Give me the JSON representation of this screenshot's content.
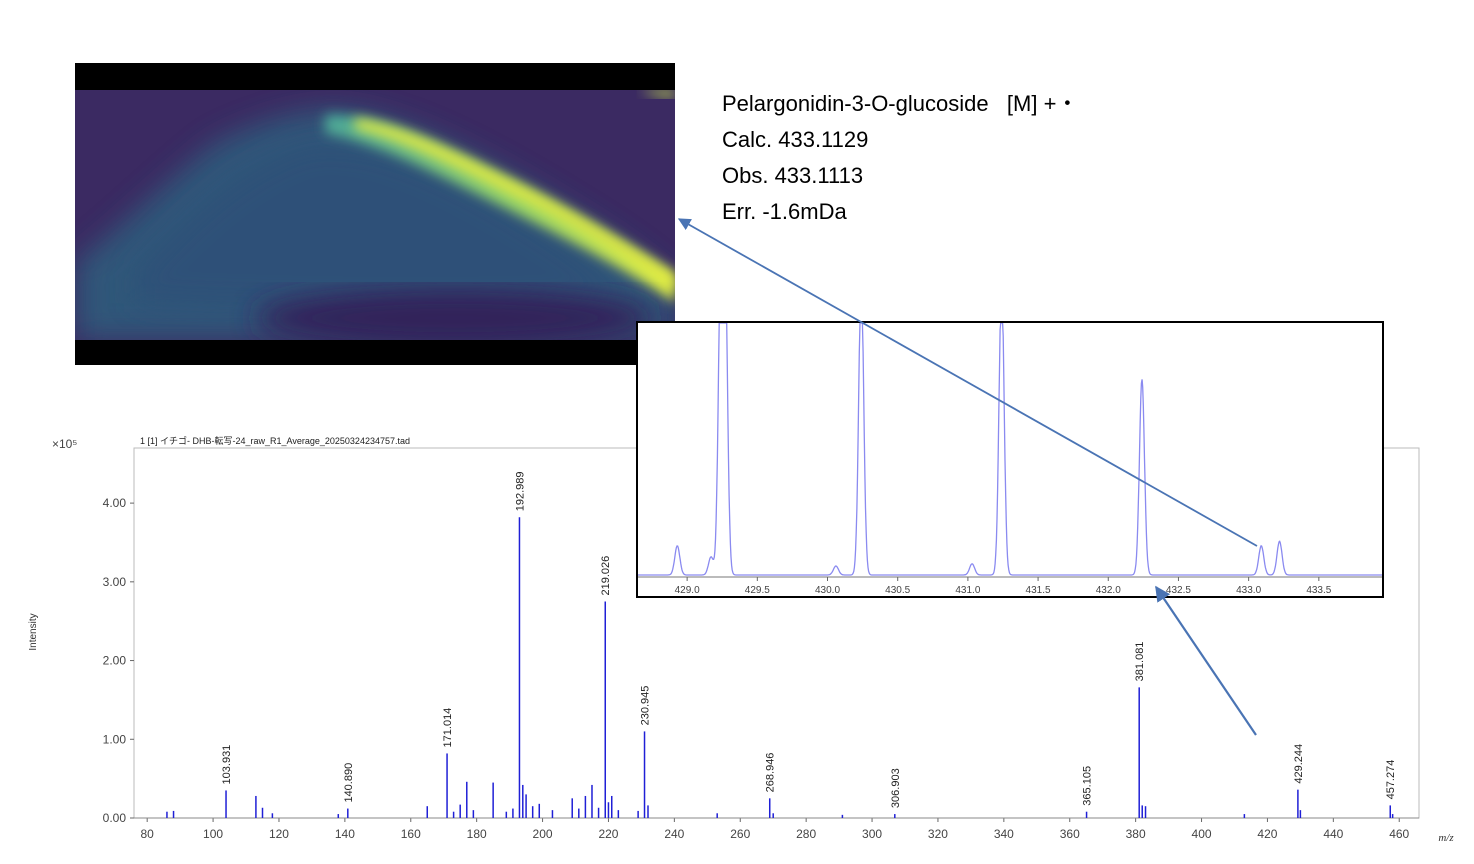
{
  "image_title": "",
  "annotation": {
    "compound": "Pelargonidin-3-O-glucoside   [M] +・",
    "calc": "Calc. 433.1129",
    "obs": "Obs. 433.1113",
    "err": "Err. -1.6mDa"
  },
  "colors": {
    "spectrum_line": "#1f1fd6",
    "inset_line": "#8a8af0",
    "arrow": "#4a74b4",
    "heatmap_background": "#3b2a62",
    "heatmap_high": "#d8e84a"
  },
  "chart_data": [
    {
      "type": "line",
      "title": "1 [1] イチゴ- DHB-転写-24_raw_R1_Average_20250324234757.tad",
      "xlabel": "m/z",
      "ylabel": "Intensity",
      "y_multiplier": "×10⁵",
      "xlim": [
        76,
        466
      ],
      "ylim": [
        0,
        4.7
      ],
      "x_ticks": [
        80,
        100,
        120,
        140,
        160,
        180,
        200,
        220,
        240,
        260,
        280,
        300,
        320,
        340,
        360,
        380,
        400,
        420,
        440,
        460
      ],
      "y_ticks": [
        0.0,
        1.0,
        2.0,
        3.0,
        4.0
      ],
      "y_tick_labels": [
        "0.00",
        "1.00",
        "2.00",
        "3.00",
        "4.00"
      ],
      "peaks": [
        {
          "mz": 103.931,
          "intensity": 0.35,
          "label": "103.931"
        },
        {
          "mz": 140.89,
          "intensity": 0.12,
          "label": "140.890"
        },
        {
          "mz": 171.014,
          "intensity": 0.82,
          "label": "171.014"
        },
        {
          "mz": 192.989,
          "intensity": 3.82,
          "label": "192.989"
        },
        {
          "mz": 219.026,
          "intensity": 2.75,
          "label": "219.026"
        },
        {
          "mz": 230.945,
          "intensity": 1.1,
          "label": "230.945"
        },
        {
          "mz": 268.946,
          "intensity": 0.25,
          "label": "268.946"
        },
        {
          "mz": 306.903,
          "intensity": 0.05,
          "label": "306.903"
        },
        {
          "mz": 365.105,
          "intensity": 0.08,
          "label": "365.105"
        },
        {
          "mz": 381.081,
          "intensity": 1.66,
          "label": "381.081"
        },
        {
          "mz": 429.244,
          "intensity": 0.36,
          "label": "429.244"
        },
        {
          "mz": 457.274,
          "intensity": 0.16,
          "label": "457.274"
        },
        {
          "mz": 86,
          "intensity": 0.08
        },
        {
          "mz": 88,
          "intensity": 0.09
        },
        {
          "mz": 113,
          "intensity": 0.28
        },
        {
          "mz": 115,
          "intensity": 0.13
        },
        {
          "mz": 118,
          "intensity": 0.06
        },
        {
          "mz": 138,
          "intensity": 0.05
        },
        {
          "mz": 165,
          "intensity": 0.15
        },
        {
          "mz": 173,
          "intensity": 0.08
        },
        {
          "mz": 175,
          "intensity": 0.17
        },
        {
          "mz": 177,
          "intensity": 0.46
        },
        {
          "mz": 179,
          "intensity": 0.1
        },
        {
          "mz": 185,
          "intensity": 0.45
        },
        {
          "mz": 189,
          "intensity": 0.08
        },
        {
          "mz": 191,
          "intensity": 0.12
        },
        {
          "mz": 194,
          "intensity": 0.42
        },
        {
          "mz": 195,
          "intensity": 0.3
        },
        {
          "mz": 197,
          "intensity": 0.15
        },
        {
          "mz": 199,
          "intensity": 0.18
        },
        {
          "mz": 203,
          "intensity": 0.1
        },
        {
          "mz": 209,
          "intensity": 0.25
        },
        {
          "mz": 211,
          "intensity": 0.12
        },
        {
          "mz": 213,
          "intensity": 0.28
        },
        {
          "mz": 215,
          "intensity": 0.42
        },
        {
          "mz": 217,
          "intensity": 0.13
        },
        {
          "mz": 220,
          "intensity": 0.2
        },
        {
          "mz": 221,
          "intensity": 0.28
        },
        {
          "mz": 223,
          "intensity": 0.1
        },
        {
          "mz": 229,
          "intensity": 0.09
        },
        {
          "mz": 232,
          "intensity": 0.16
        },
        {
          "mz": 253,
          "intensity": 0.06
        },
        {
          "mz": 270,
          "intensity": 0.06
        },
        {
          "mz": 291,
          "intensity": 0.04
        },
        {
          "mz": 382,
          "intensity": 0.16
        },
        {
          "mz": 383,
          "intensity": 0.15
        },
        {
          "mz": 413,
          "intensity": 0.05
        },
        {
          "mz": 430,
          "intensity": 0.1
        },
        {
          "mz": 458,
          "intensity": 0.05
        }
      ]
    },
    {
      "type": "line",
      "title": "",
      "xlabel": "",
      "ylabel": "",
      "xlim": [
        428.65,
        433.95
      ],
      "x_ticks": [
        429.0,
        429.5,
        430.0,
        430.5,
        431.0,
        431.5,
        432.0,
        432.5,
        433.0,
        433.5
      ],
      "x_tick_labels": [
        "429.0",
        "429.5",
        "430.0",
        "430.5",
        "431.0",
        "431.5",
        "432.0",
        "432.5",
        "433.0",
        "433.5"
      ],
      "peaks": [
        {
          "mz": 428.93,
          "intensity": 0.13
        },
        {
          "mz": 429.17,
          "intensity": 0.08
        },
        {
          "mz": 429.24,
          "intensity": 1.3
        },
        {
          "mz": 429.27,
          "intensity": 1.3
        },
        {
          "mz": 430.06,
          "intensity": 0.04
        },
        {
          "mz": 430.24,
          "intensity": 1.3
        },
        {
          "mz": 431.03,
          "intensity": 0.05
        },
        {
          "mz": 431.24,
          "intensity": 1.3
        },
        {
          "mz": 432.24,
          "intensity": 0.87
        },
        {
          "mz": 433.09,
          "intensity": 0.13
        },
        {
          "mz": 433.22,
          "intensity": 0.15
        }
      ]
    }
  ]
}
